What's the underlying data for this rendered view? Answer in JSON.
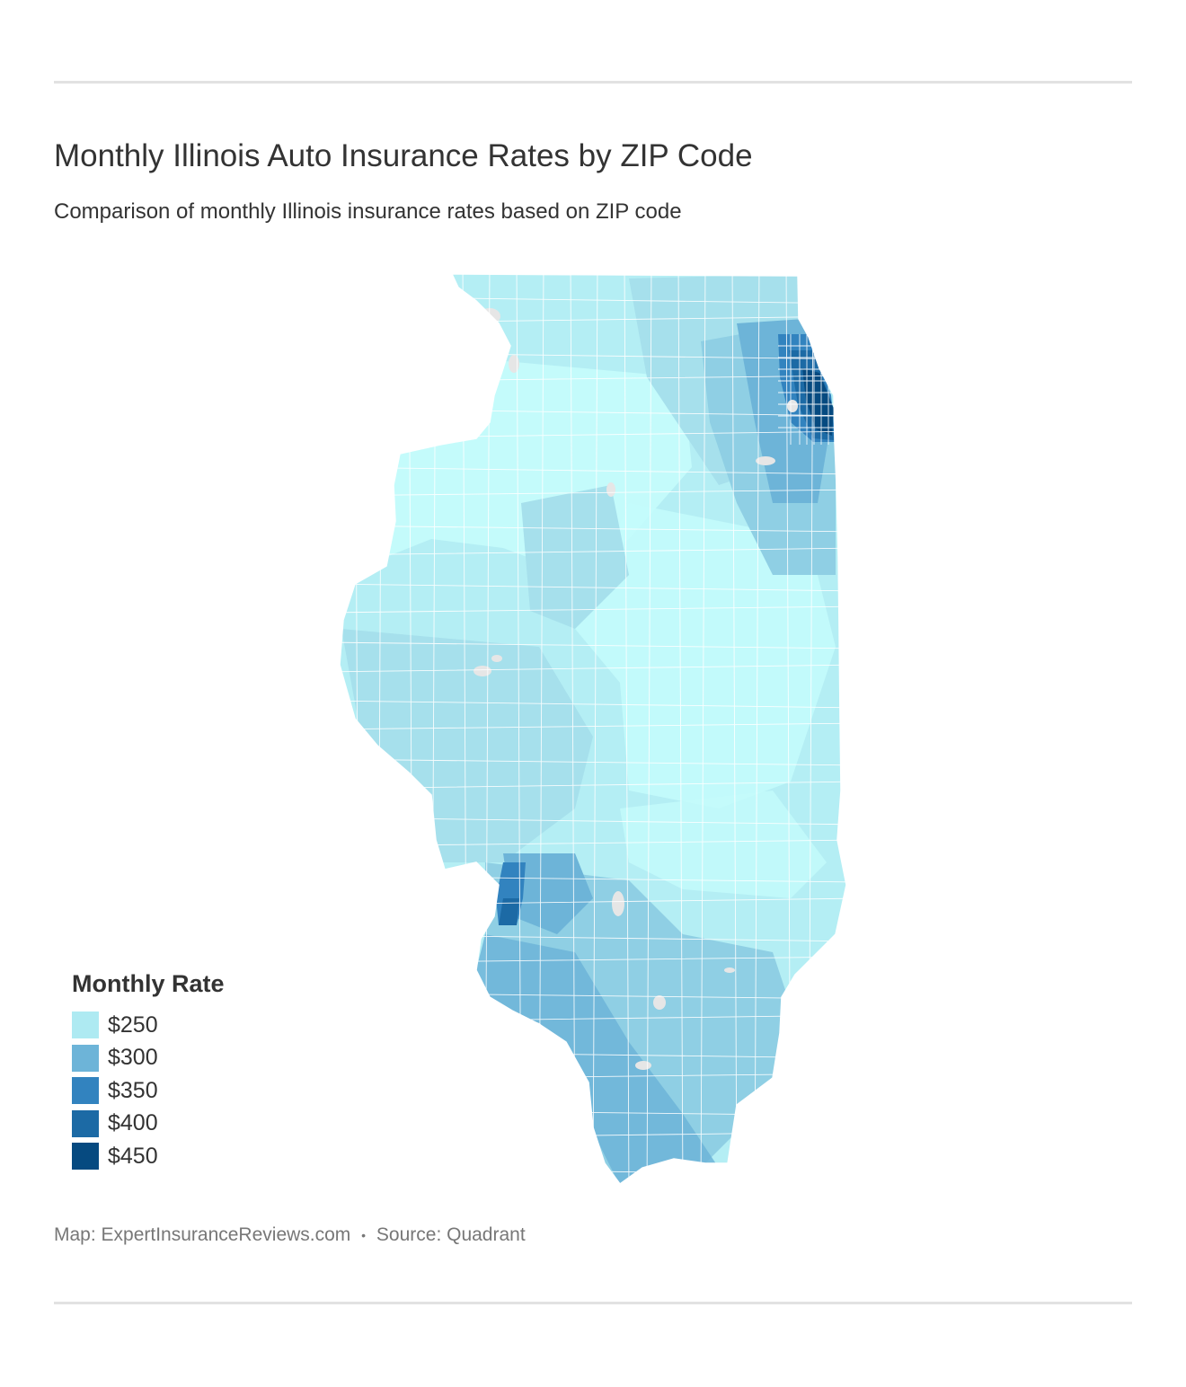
{
  "title": "Monthly Illinois Auto Insurance Rates by ZIP Code",
  "subtitle": "Comparison of monthly Illinois insurance rates based on ZIP code",
  "legend": {
    "title": "Monthly Rate",
    "items": [
      {
        "label": "$250",
        "color": "#aeeaf2"
      },
      {
        "label": "$300",
        "color": "#6db4d8"
      },
      {
        "label": "$350",
        "color": "#3283bf"
      },
      {
        "label": "$400",
        "color": "#1c6aa5"
      },
      {
        "label": "$450",
        "color": "#064a80"
      }
    ]
  },
  "footer": {
    "map_credit": "Map: ExpertInsuranceReviews.com",
    "separator": "•",
    "source": "Source: Quadrant"
  },
  "map": {
    "region": "Illinois",
    "colors": {
      "lowest": "#c4fbfb",
      "low": "#b4eef4",
      "mid_low": "#a6e0ec",
      "mid": "#8fcfe4",
      "mid_high": "#6db4d8",
      "high": "#3283bf",
      "very_high": "#1c6aa5",
      "highest": "#064a80",
      "water": "#e6e6e6",
      "boundary": "#ffffff"
    }
  }
}
